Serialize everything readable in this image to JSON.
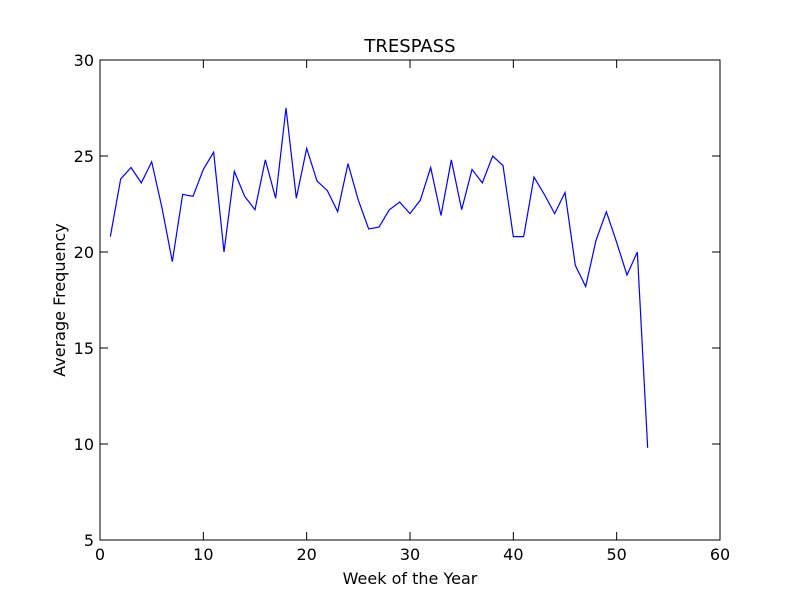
{
  "chart_data": {
    "type": "line",
    "title": "TRESPASS",
    "xlabel": "Week of the Year",
    "ylabel": "Average Frequency",
    "xlim": [
      0,
      60
    ],
    "ylim": [
      5,
      30
    ],
    "xticks": [
      0,
      10,
      20,
      30,
      40,
      50,
      60
    ],
    "yticks": [
      5,
      10,
      15,
      20,
      25,
      30
    ],
    "grid": false,
    "series": [
      {
        "color": "#0000ff",
        "x": [
          1,
          2,
          3,
          4,
          5,
          6,
          7,
          8,
          9,
          10,
          11,
          12,
          13,
          14,
          15,
          16,
          17,
          18,
          19,
          20,
          21,
          22,
          23,
          24,
          25,
          26,
          27,
          28,
          29,
          30,
          31,
          32,
          33,
          34,
          35,
          36,
          37,
          38,
          39,
          40,
          41,
          42,
          43,
          44,
          45,
          46,
          47,
          48,
          49,
          50,
          51,
          52,
          53
        ],
        "y": [
          20.8,
          23.8,
          24.4,
          23.6,
          24.7,
          22.3,
          19.5,
          23.0,
          22.9,
          24.3,
          25.2,
          20.0,
          24.2,
          22.9,
          22.2,
          24.8,
          22.8,
          27.5,
          22.8,
          25.4,
          23.7,
          23.2,
          22.1,
          24.6,
          22.7,
          21.2,
          21.3,
          22.2,
          22.6,
          22.0,
          22.7,
          24.4,
          21.9,
          24.8,
          22.2,
          24.3,
          23.6,
          25.0,
          24.5,
          20.8,
          20.8,
          23.9,
          23.0,
          22.0,
          23.1,
          19.3,
          18.2,
          20.6,
          22.1,
          20.5,
          18.8,
          20.0,
          9.8
        ]
      }
    ]
  }
}
